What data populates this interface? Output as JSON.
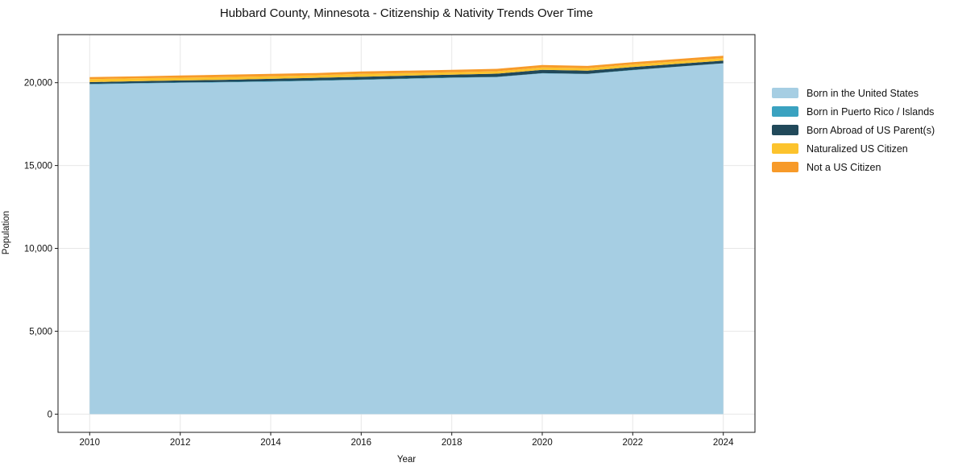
{
  "chart": {
    "title": "Hubbard County, Minnesota - Citizenship & Nativity Trends Over Time",
    "xlabel": "Year",
    "ylabel": "Population"
  },
  "chart_data": {
    "type": "area",
    "stacked": true,
    "title": "Hubbard County, Minnesota - Citizenship & Nativity Trends Over Time",
    "xlabel": "Year",
    "ylabel": "Population",
    "grid": true,
    "legend_position": "right",
    "x": [
      2010,
      2011,
      2012,
      2013,
      2014,
      2015,
      2016,
      2017,
      2018,
      2019,
      2020,
      2021,
      2022,
      2023,
      2024
    ],
    "series": [
      {
        "name": "Born in the United States",
        "color": "#a6cee3",
        "values": [
          19900,
          19950,
          19990,
          20020,
          20060,
          20110,
          20165,
          20230,
          20290,
          20335,
          20560,
          20520,
          20750,
          20960,
          21160
        ]
      },
      {
        "name": "Born in Puerto Rico / Islands",
        "color": "#3aa2c0",
        "values": [
          25,
          25,
          25,
          25,
          25,
          25,
          20,
          20,
          20,
          15,
          15,
          15,
          15,
          10,
          10
        ]
      },
      {
        "name": "Born Abroad of US Parent(s)",
        "color": "#21495a",
        "values": [
          110,
          110,
          120,
          130,
          150,
          160,
          170,
          170,
          170,
          195,
          200,
          190,
          175,
          165,
          160
        ]
      },
      {
        "name": "Naturalized US Citizen",
        "color": "#fcc32d",
        "values": [
          180,
          175,
          165,
          160,
          150,
          150,
          175,
          160,
          150,
          145,
          150,
          155,
          160,
          155,
          150
        ]
      },
      {
        "name": "Not a US Citizen",
        "color": "#f79a29",
        "values": [
          120,
          120,
          135,
          145,
          145,
          140,
          150,
          145,
          145,
          145,
          140,
          130,
          140,
          140,
          145
        ]
      }
    ],
    "x_ticks": [
      {
        "value": 2010,
        "label": "2010"
      },
      {
        "value": 2012,
        "label": "2012"
      },
      {
        "value": 2014,
        "label": "2014"
      },
      {
        "value": 2016,
        "label": "2016"
      },
      {
        "value": 2018,
        "label": "2018"
      },
      {
        "value": 2020,
        "label": "2020"
      },
      {
        "value": 2022,
        "label": "2022"
      },
      {
        "value": 2024,
        "label": "2024"
      }
    ],
    "y_ticks": [
      {
        "value": 0,
        "label": "0"
      },
      {
        "value": 5000,
        "label": "5,000"
      },
      {
        "value": 10000,
        "label": "10,000"
      },
      {
        "value": 15000,
        "label": "15,000"
      },
      {
        "value": 20000,
        "label": "20,000"
      }
    ],
    "xlim": [
      2009.3,
      2024.7
    ],
    "ylim": [
      -1100,
      22900
    ],
    "colors": {
      "grid": "#e7e7e7",
      "spine": "#1a1a1a",
      "background": "#ffffff"
    }
  }
}
